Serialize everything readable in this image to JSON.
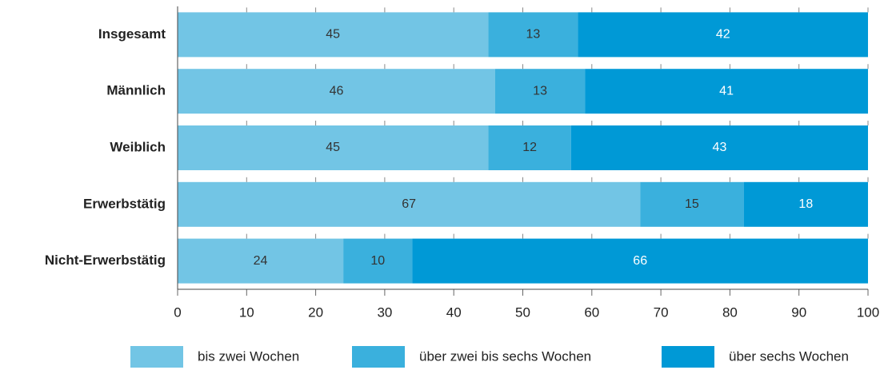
{
  "chart_data": {
    "type": "stacked-barh",
    "categories": [
      "Insgesamt",
      "Männlich",
      "Weiblich",
      "Erwerbstätig",
      "Nicht-Erwerbstätig"
    ],
    "series": [
      {
        "name": "bis zwei Wochen",
        "color": "#72c5e5",
        "values": [
          45,
          46,
          45,
          67,
          24
        ]
      },
      {
        "name": "über zwei bis sechs Wochen",
        "color": "#3ab0dd",
        "values": [
          13,
          13,
          12,
          15,
          10
        ]
      },
      {
        "name": "über sechs Wochen",
        "color": "#0099d6",
        "values": [
          42,
          41,
          43,
          18,
          66
        ]
      }
    ],
    "xlim": [
      0,
      100
    ],
    "xticks": [
      0,
      10,
      20,
      30,
      40,
      50,
      60,
      70,
      80,
      90,
      100
    ]
  }
}
